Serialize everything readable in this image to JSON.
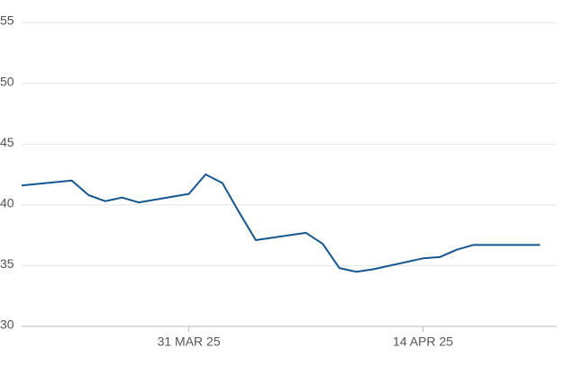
{
  "chart_data": {
    "type": "line",
    "x": [
      "2025-03-21",
      "2025-03-24",
      "2025-03-25",
      "2025-03-26",
      "2025-03-27",
      "2025-03-28",
      "2025-03-31",
      "2025-04-01",
      "2025-04-02",
      "2025-04-03",
      "2025-04-04",
      "2025-04-07",
      "2025-04-08",
      "2025-04-09",
      "2025-04-10",
      "2025-04-11",
      "2025-04-14",
      "2025-04-15",
      "2025-04-16",
      "2025-04-17",
      "2025-04-21"
    ],
    "series": [
      {
        "color": "#16568f",
        "values": [
          41.6,
          42.0,
          40.8,
          40.3,
          40.6,
          40.2,
          40.9,
          42.5,
          41.8,
          39.4,
          37.1,
          37.7,
          36.8,
          34.8,
          34.5,
          34.7,
          35.6,
          35.7,
          36.3,
          36.7,
          36.7
        ]
      }
    ],
    "xlim": [
      "2025-03-21",
      "2025-04-22"
    ],
    "xticks": [
      {
        "value": "2025-03-31",
        "label": "31 MAR 25"
      },
      {
        "value": "2025-04-14",
        "label": "14 APR 25"
      }
    ],
    "ylim": [
      30,
      55
    ],
    "yticks": [
      30,
      35,
      40,
      45,
      50,
      55
    ],
    "grid": true
  }
}
